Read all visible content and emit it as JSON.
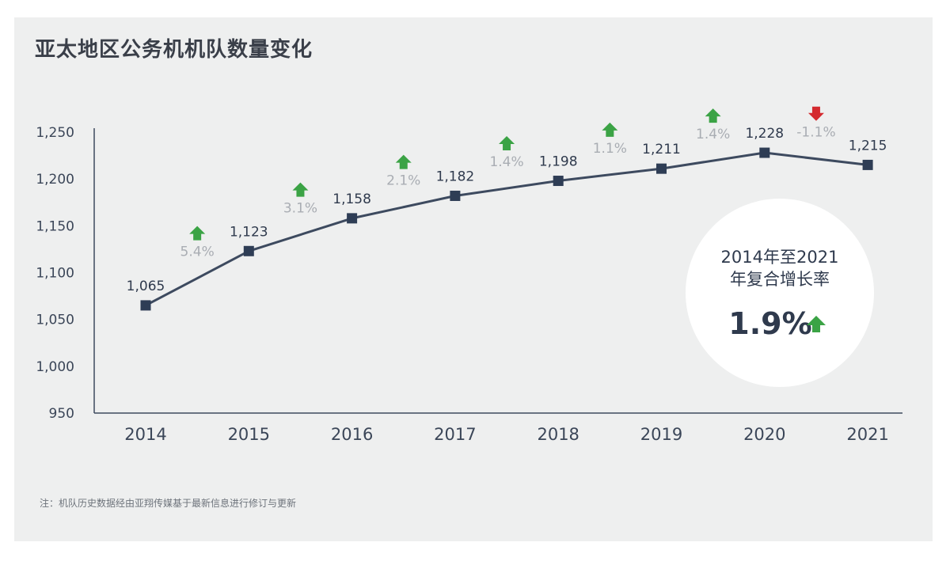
{
  "title": "亚太地区公务机机队数量变化",
  "note": "注：机队历史数据经由亚翔传媒基于最新信息进行修订与更新",
  "summary": {
    "line1": "2014年至2021",
    "line2": "年复合增长率",
    "value": "1.9%",
    "trend": "up"
  },
  "colors": {
    "line": "#3d4a5f",
    "marker": "#2e3d55",
    "up": "#3ba345",
    "down": "#d42a2f",
    "growth_text": "#a9adb3"
  },
  "chart_data": {
    "type": "line",
    "title": "亚太地区公务机机队数量变化",
    "categories": [
      "2014",
      "2015",
      "2016",
      "2017",
      "2018",
      "2019",
      "2020",
      "2021"
    ],
    "values": [
      1065,
      1123,
      1158,
      1182,
      1198,
      1211,
      1228,
      1215
    ],
    "value_labels": [
      "1,065",
      "1,123",
      "1,158",
      "1,182",
      "1,198",
      "1,211",
      "1,228",
      "1,215"
    ],
    "growth": [
      {
        "label": "5.4%",
        "direction": "up"
      },
      {
        "label": "3.1%",
        "direction": "up"
      },
      {
        "label": "2.1%",
        "direction": "up"
      },
      {
        "label": "1.4%",
        "direction": "up"
      },
      {
        "label": "1.1%",
        "direction": "up"
      },
      {
        "label": "1.4%",
        "direction": "up"
      },
      {
        "label": "-1.1%",
        "direction": "down"
      }
    ],
    "yticks": [
      950,
      1000,
      1050,
      1100,
      1150,
      1200,
      1250
    ],
    "ytick_labels": [
      "950",
      "1,000",
      "1,050",
      "1,100",
      "1,150",
      "1,200",
      "1,250"
    ],
    "ylim": [
      950,
      1250
    ],
    "xlabel": "",
    "ylabel": "",
    "grid": false
  }
}
